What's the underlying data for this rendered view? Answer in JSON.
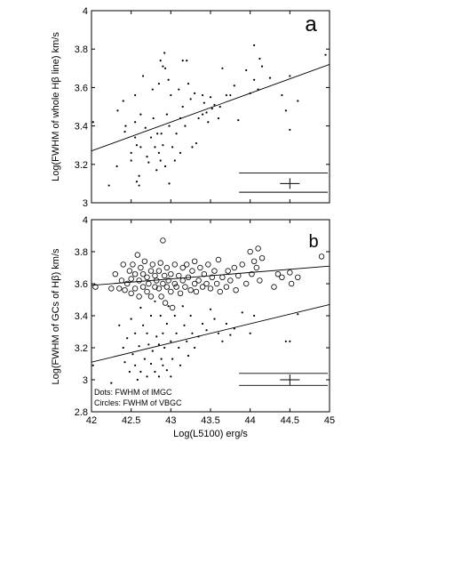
{
  "chart_data": [
    {
      "panel_label": "a",
      "type": "scatter",
      "ylabel": "Log(FWHM of whole Hβ line) km/s",
      "xlim": [
        42,
        45
      ],
      "ylim": [
        3.0,
        4.0
      ],
      "yticks": [
        "3",
        "3.2",
        "3.4",
        "3.6",
        "3.8",
        "4"
      ],
      "series": [
        {
          "marker": "dot",
          "points": [
            [
              42.02,
              3.42
            ],
            [
              42.22,
              3.09
            ],
            [
              42.32,
              3.19
            ],
            [
              42.33,
              3.48
            ],
            [
              42.4,
              3.53
            ],
            [
              42.42,
              3.37
            ],
            [
              42.43,
              3.4
            ],
            [
              42.5,
              3.22
            ],
            [
              42.5,
              3.26
            ],
            [
              42.55,
              3.56
            ],
            [
              42.55,
              3.42
            ],
            [
              42.55,
              3.34
            ],
            [
              42.57,
              3.3
            ],
            [
              42.57,
              3.11
            ],
            [
              42.6,
              3.09
            ],
            [
              42.6,
              3.14
            ],
            [
              42.62,
              3.46
            ],
            [
              42.62,
              3.29
            ],
            [
              42.65,
              3.66
            ],
            [
              42.68,
              3.39
            ],
            [
              42.7,
              3.24
            ],
            [
              42.72,
              3.21
            ],
            [
              42.75,
              3.34
            ],
            [
              42.77,
              3.59
            ],
            [
              42.78,
              3.44
            ],
            [
              42.8,
              3.29
            ],
            [
              42.82,
              3.17
            ],
            [
              42.83,
              3.36
            ],
            [
              42.85,
              3.62
            ],
            [
              42.85,
              3.26
            ],
            [
              42.87,
              3.74
            ],
            [
              42.87,
              3.22
            ],
            [
              42.88,
              3.36
            ],
            [
              42.9,
              3.71
            ],
            [
              42.9,
              3.3
            ],
            [
              42.92,
              3.78
            ],
            [
              42.93,
              3.7
            ],
            [
              42.93,
              3.19
            ],
            [
              42.95,
              3.46
            ],
            [
              42.97,
              3.64
            ],
            [
              42.98,
              3.4
            ],
            [
              42.98,
              3.1
            ],
            [
              43.0,
              3.56
            ],
            [
              43.02,
              3.29
            ],
            [
              43.05,
              3.22
            ],
            [
              43.07,
              3.36
            ],
            [
              43.1,
              3.59
            ],
            [
              43.12,
              3.44
            ],
            [
              43.12,
              3.26
            ],
            [
              43.15,
              3.74
            ],
            [
              43.15,
              3.5
            ],
            [
              43.18,
              3.4
            ],
            [
              43.2,
              3.74
            ],
            [
              43.22,
              3.62
            ],
            [
              43.25,
              3.54
            ],
            [
              43.27,
              3.29
            ],
            [
              43.3,
              3.57
            ],
            [
              43.32,
              3.31
            ],
            [
              43.35,
              3.44
            ],
            [
              43.4,
              3.46
            ],
            [
              43.4,
              3.56
            ],
            [
              43.42,
              3.52
            ],
            [
              43.45,
              3.47
            ],
            [
              43.47,
              3.42
            ],
            [
              43.5,
              3.55
            ],
            [
              43.52,
              3.49
            ],
            [
              43.55,
              3.51
            ],
            [
              43.6,
              3.44
            ],
            [
              43.62,
              3.5
            ],
            [
              43.65,
              3.7
            ],
            [
              43.7,
              3.56
            ],
            [
              43.75,
              3.56
            ],
            [
              43.8,
              3.61
            ],
            [
              43.85,
              3.43
            ],
            [
              43.95,
              3.69
            ],
            [
              44.0,
              3.57
            ],
            [
              44.05,
              3.82
            ],
            [
              44.05,
              3.64
            ],
            [
              44.1,
              3.59
            ],
            [
              44.12,
              3.75
            ],
            [
              44.15,
              3.71
            ],
            [
              44.25,
              3.65
            ],
            [
              44.4,
              3.56
            ],
            [
              44.45,
              3.48
            ],
            [
              44.5,
              3.66
            ],
            [
              44.5,
              3.38
            ],
            [
              44.6,
              3.53
            ],
            [
              44.95,
              3.77
            ]
          ]
        }
      ],
      "fit_lines": [
        {
          "x": [
            42.0,
            45.0
          ],
          "y": [
            3.27,
            3.72
          ]
        }
      ],
      "error_bar": {
        "x": 44.5,
        "y": 3.1,
        "y_upper": 3.155,
        "y_lower": 3.055
      }
    },
    {
      "panel_label": "b",
      "type": "scatter",
      "xlabel": "Log(L5100)  erg/s",
      "ylabel": "Log(FWHM of GCs of Hβ)  km/s",
      "xlim": [
        42,
        45
      ],
      "ylim": [
        2.8,
        4.0
      ],
      "xticks": [
        "42",
        "42.5",
        "43",
        "43.5",
        "44",
        "44.5",
        "45"
      ],
      "yticks": [
        "2.8",
        "3",
        "3.2",
        "3.4",
        "3.6",
        "3.8",
        "4"
      ],
      "legend_text": [
        "Dots: FWHM of IMGC",
        "Circles: FWHM of VBGC"
      ],
      "series": [
        {
          "marker": "dot",
          "points": [
            [
              42.02,
              3.09
            ],
            [
              42.25,
              2.98
            ],
            [
              42.35,
              3.34
            ],
            [
              42.4,
              3.2
            ],
            [
              42.42,
              3.11
            ],
            [
              42.45,
              3.26
            ],
            [
              42.48,
              3.05
            ],
            [
              42.5,
              3.38
            ],
            [
              42.52,
              3.16
            ],
            [
              42.55,
              3.29
            ],
            [
              42.55,
              3.09
            ],
            [
              42.58,
              3.0
            ],
            [
              42.6,
              3.21
            ],
            [
              42.62,
              3.45
            ],
            [
              42.62,
              3.05
            ],
            [
              42.65,
              3.34
            ],
            [
              42.67,
              3.13
            ],
            [
              42.7,
              3.29
            ],
            [
              42.7,
              3.02
            ],
            [
              42.72,
              3.22
            ],
            [
              42.75,
              3.4
            ],
            [
              42.75,
              3.1
            ],
            [
              42.77,
              3.18
            ],
            [
              42.8,
              3.49
            ],
            [
              42.8,
              3.05
            ],
            [
              42.82,
              3.27
            ],
            [
              42.85,
              3.22
            ],
            [
              42.85,
              3.02
            ],
            [
              42.87,
              3.4
            ],
            [
              42.88,
              3.13
            ],
            [
              42.9,
              3.29
            ],
            [
              42.9,
              3.09
            ],
            [
              42.92,
              3.2
            ],
            [
              42.95,
              3.35
            ],
            [
              42.95,
              3.06
            ],
            [
              42.97,
              3.46
            ],
            [
              43.0,
              3.24
            ],
            [
              43.0,
              3.02
            ],
            [
              43.02,
              3.13
            ],
            [
              43.05,
              3.4
            ],
            [
              43.07,
              3.29
            ],
            [
              43.1,
              3.2
            ],
            [
              43.12,
              3.09
            ],
            [
              43.15,
              3.46
            ],
            [
              43.17,
              3.34
            ],
            [
              43.2,
              3.24
            ],
            [
              43.22,
              3.15
            ],
            [
              43.25,
              3.4
            ],
            [
              43.27,
              3.29
            ],
            [
              43.3,
              3.2
            ],
            [
              43.35,
              3.27
            ],
            [
              43.4,
              3.35
            ],
            [
              43.45,
              3.31
            ],
            [
              43.5,
              3.44
            ],
            [
              43.55,
              3.38
            ],
            [
              43.6,
              3.29
            ],
            [
              43.65,
              3.24
            ],
            [
              43.7,
              3.35
            ],
            [
              43.75,
              3.28
            ],
            [
              43.8,
              3.32
            ],
            [
              43.9,
              3.42
            ],
            [
              44.0,
              3.29
            ],
            [
              44.05,
              3.4
            ],
            [
              44.45,
              3.24
            ],
            [
              44.5,
              3.24
            ],
            [
              44.6,
              3.41
            ]
          ]
        },
        {
          "marker": "circle",
          "points": [
            [
              42.05,
              3.58
            ],
            [
              42.25,
              3.57
            ],
            [
              42.3,
              3.66
            ],
            [
              42.35,
              3.57
            ],
            [
              42.38,
              3.62
            ],
            [
              42.4,
              3.72
            ],
            [
              42.42,
              3.56
            ],
            [
              42.45,
              3.6
            ],
            [
              42.48,
              3.68
            ],
            [
              42.5,
              3.54
            ],
            [
              42.5,
              3.63
            ],
            [
              42.52,
              3.72
            ],
            [
              42.55,
              3.57
            ],
            [
              42.55,
              3.66
            ],
            [
              42.58,
              3.78
            ],
            [
              42.6,
              3.52
            ],
            [
              42.6,
              3.62
            ],
            [
              42.62,
              3.7
            ],
            [
              42.65,
              3.58
            ],
            [
              42.65,
              3.66
            ],
            [
              42.67,
              3.74
            ],
            [
              42.7,
              3.55
            ],
            [
              42.7,
              3.64
            ],
            [
              42.72,
              3.6
            ],
            [
              42.75,
              3.68
            ],
            [
              42.75,
              3.52
            ],
            [
              42.77,
              3.72
            ],
            [
              42.8,
              3.58
            ],
            [
              42.8,
              3.65
            ],
            [
              42.82,
              3.62
            ],
            [
              42.85,
              3.57
            ],
            [
              42.85,
              3.68
            ],
            [
              42.87,
              3.73
            ],
            [
              42.88,
              3.52
            ],
            [
              42.9,
              3.87
            ],
            [
              42.9,
              3.6
            ],
            [
              42.92,
              3.65
            ],
            [
              42.93,
              3.48
            ],
            [
              42.95,
              3.7
            ],
            [
              42.95,
              3.58
            ],
            [
              42.97,
              3.62
            ],
            [
              43.0,
              3.55
            ],
            [
              43.0,
              3.66
            ],
            [
              43.02,
              3.45
            ],
            [
              43.05,
              3.72
            ],
            [
              43.05,
              3.6
            ],
            [
              43.07,
              3.58
            ],
            [
              43.1,
              3.65
            ],
            [
              43.12,
              3.54
            ],
            [
              43.15,
              3.7
            ],
            [
              43.15,
              3.62
            ],
            [
              43.18,
              3.58
            ],
            [
              43.2,
              3.72
            ],
            [
              43.22,
              3.64
            ],
            [
              43.25,
              3.56
            ],
            [
              43.27,
              3.68
            ],
            [
              43.3,
              3.74
            ],
            [
              43.3,
              3.6
            ],
            [
              43.32,
              3.55
            ],
            [
              43.35,
              3.62
            ],
            [
              43.37,
              3.7
            ],
            [
              43.4,
              3.58
            ],
            [
              43.42,
              3.66
            ],
            [
              43.45,
              3.6
            ],
            [
              43.47,
              3.72
            ],
            [
              43.5,
              3.57
            ],
            [
              43.52,
              3.64
            ],
            [
              43.55,
              3.68
            ],
            [
              43.58,
              3.6
            ],
            [
              43.6,
              3.75
            ],
            [
              43.62,
              3.55
            ],
            [
              43.65,
              3.64
            ],
            [
              43.7,
              3.58
            ],
            [
              43.72,
              3.68
            ],
            [
              43.75,
              3.62
            ],
            [
              43.8,
              3.7
            ],
            [
              43.82,
              3.56
            ],
            [
              43.85,
              3.65
            ],
            [
              43.9,
              3.72
            ],
            [
              43.95,
              3.6
            ],
            [
              44.0,
              3.8
            ],
            [
              44.02,
              3.66
            ],
            [
              44.05,
              3.74
            ],
            [
              44.08,
              3.7
            ],
            [
              44.1,
              3.82
            ],
            [
              44.12,
              3.62
            ],
            [
              44.15,
              3.76
            ],
            [
              44.3,
              3.58
            ],
            [
              44.35,
              3.66
            ],
            [
              44.4,
              3.64
            ],
            [
              44.5,
              3.67
            ],
            [
              44.52,
              3.6
            ],
            [
              44.6,
              3.64
            ],
            [
              44.9,
              3.77
            ]
          ]
        }
      ],
      "fit_lines": [
        {
          "x": [
            42.0,
            45.0
          ],
          "y": [
            3.59,
            3.71
          ]
        },
        {
          "x": [
            42.0,
            45.0
          ],
          "y": [
            3.11,
            3.47
          ]
        }
      ],
      "error_bar": {
        "x": 44.5,
        "y": 3.0,
        "y_upper": 3.04,
        "y_lower": 2.965
      }
    }
  ]
}
